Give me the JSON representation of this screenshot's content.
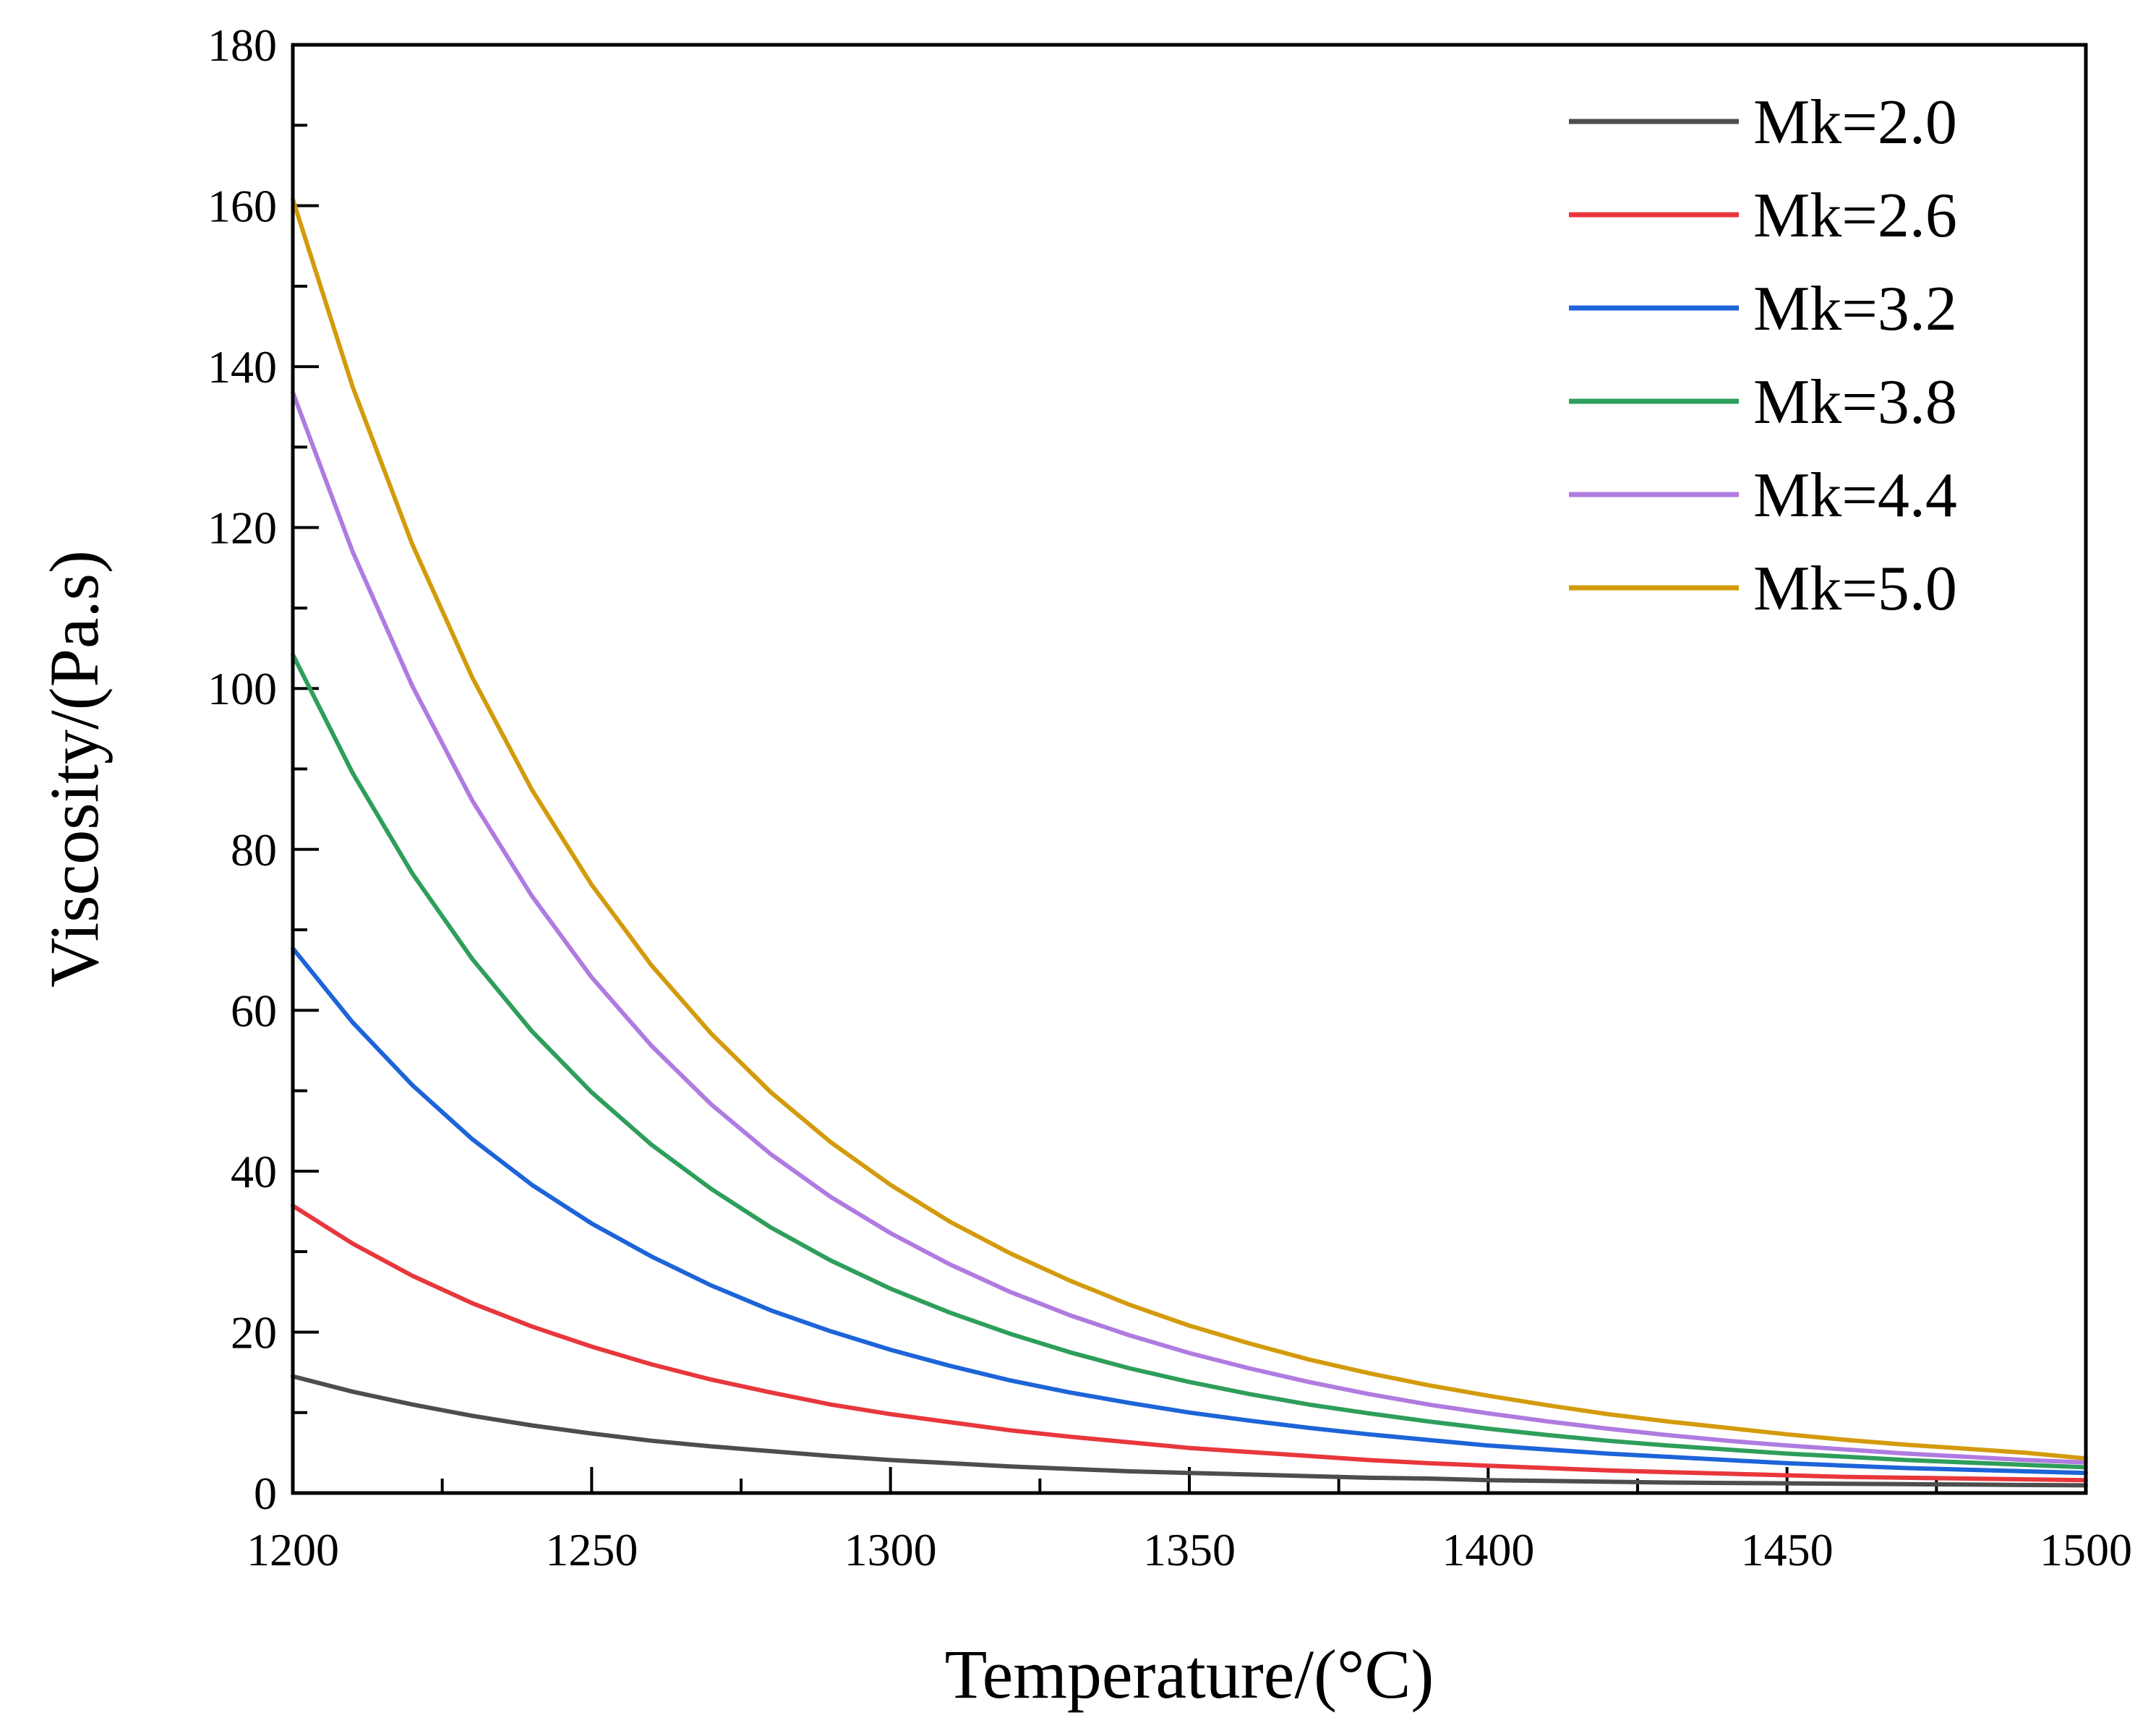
{
  "chart_data": {
    "type": "line",
    "title": "",
    "xlabel": "Temperature/(°C)",
    "ylabel": "Viscosity/(Pa.s)",
    "xlim": [
      1200,
      1500
    ],
    "ylim": [
      0,
      180
    ],
    "xticks": [
      1200,
      1250,
      1300,
      1350,
      1400,
      1450,
      1500
    ],
    "xtick_labels": [
      "1200",
      "1250",
      "1300",
      "1350",
      "1400",
      "1450",
      "1500"
    ],
    "yticks": [
      0,
      20,
      40,
      60,
      80,
      100,
      120,
      140,
      160,
      180
    ],
    "ytick_labels": [
      "0",
      "20",
      "40",
      "60",
      "80",
      "100",
      "120",
      "140",
      "160",
      "180"
    ],
    "grid": false,
    "legend_position": "top-right",
    "x": [
      1200,
      1210,
      1220,
      1230,
      1240,
      1250,
      1260,
      1270,
      1280,
      1290,
      1300,
      1310,
      1320,
      1330,
      1340,
      1350,
      1360,
      1370,
      1380,
      1390,
      1400,
      1410,
      1420,
      1430,
      1440,
      1450,
      1460,
      1470,
      1480,
      1490,
      1500
    ],
    "series": [
      {
        "name": "Mk=2.0",
        "color": "#4d4d4d",
        "values": [
          14.5,
          12.6,
          11.0,
          9.6,
          8.4,
          7.4,
          6.5,
          5.8,
          5.2,
          4.6,
          4.1,
          3.7,
          3.3,
          3.0,
          2.7,
          2.5,
          2.3,
          2.1,
          1.9,
          1.8,
          1.6,
          1.5,
          1.4,
          1.3,
          1.25,
          1.2,
          1.15,
          1.1,
          1.05,
          1.0,
          0.95
        ]
      },
      {
        "name": "Mk=2.6",
        "color": "#e8373c",
        "values": [
          35.7,
          31.0,
          27.0,
          23.6,
          20.7,
          18.2,
          16.0,
          14.1,
          12.5,
          11.0,
          9.8,
          8.8,
          7.8,
          7.0,
          6.3,
          5.6,
          5.1,
          4.6,
          4.1,
          3.7,
          3.4,
          3.1,
          2.8,
          2.6,
          2.4,
          2.2,
          2.0,
          1.9,
          1.8,
          1.7,
          1.6
        ]
      },
      {
        "name": "Mk=3.2",
        "color": "#1d64d8",
        "values": [
          67.7,
          58.5,
          50.7,
          44.0,
          38.3,
          33.5,
          29.4,
          25.8,
          22.7,
          20.1,
          17.8,
          15.8,
          14.0,
          12.5,
          11.2,
          10.0,
          9.0,
          8.1,
          7.3,
          6.6,
          5.9,
          5.4,
          4.9,
          4.5,
          4.1,
          3.7,
          3.4,
          3.1,
          2.9,
          2.7,
          2.5
        ]
      },
      {
        "name": "Mk=3.8",
        "color": "#2e9e5b",
        "values": [
          104.2,
          89.5,
          77.0,
          66.4,
          57.4,
          49.8,
          43.3,
          37.8,
          33.0,
          28.9,
          25.4,
          22.4,
          19.8,
          17.5,
          15.5,
          13.8,
          12.3,
          11.0,
          9.9,
          8.9,
          8.0,
          7.2,
          6.5,
          5.9,
          5.4,
          4.9,
          4.5,
          4.1,
          3.8,
          3.5,
          3.2
        ]
      },
      {
        "name": "Mk=4.4",
        "color": "#b07be0",
        "values": [
          136.8,
          117.0,
          100.3,
          86.1,
          74.2,
          64.1,
          55.6,
          48.3,
          42.1,
          36.8,
          32.3,
          28.4,
          25.0,
          22.1,
          19.6,
          17.4,
          15.5,
          13.8,
          12.3,
          11.0,
          9.9,
          8.9,
          8.0,
          7.2,
          6.5,
          5.9,
          5.4,
          4.9,
          4.5,
          4.1,
          3.8
        ]
      },
      {
        "name": "Mk=5.0",
        "color": "#d39b0c",
        "values": [
          160.8,
          137.5,
          117.9,
          101.4,
          87.4,
          75.6,
          65.6,
          57.1,
          49.8,
          43.6,
          38.3,
          33.7,
          29.8,
          26.4,
          23.4,
          20.8,
          18.6,
          16.6,
          14.9,
          13.4,
          12.1,
          10.9,
          9.8,
          8.9,
          8.1,
          7.3,
          6.6,
          6.0,
          5.5,
          5.0,
          4.3
        ]
      }
    ]
  }
}
